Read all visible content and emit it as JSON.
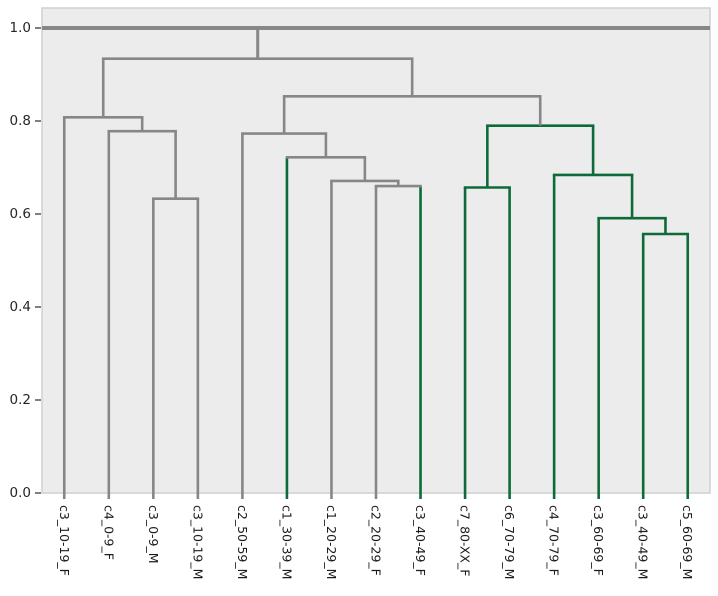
{
  "figure": {
    "background": "#ffffff",
    "axes_background": "#ececec",
    "spine_color": "#d2d2d2",
    "tick_color": "#3b3b3b",
    "tick_label_color": "#262626"
  },
  "chart_data": {
    "type": "dendrogram",
    "title": "",
    "xlabel": "",
    "ylabel": "",
    "orientation": "top",
    "grid": false,
    "legend": null,
    "y_axis": {
      "ticks": [
        "0.0",
        "0.2",
        "0.4",
        "0.6",
        "0.8",
        "1.0"
      ],
      "tick_values": [
        0.0,
        0.2,
        0.4,
        0.6,
        0.8,
        1.0
      ],
      "range": [
        0.0,
        1.04
      ]
    },
    "colors": {
      "gray": "#878787",
      "green": "#0e6b39"
    },
    "line_width": 2.6,
    "root_line_width": 4,
    "leaves": [
      {
        "label": "c3_10-19_F",
        "color": "gray"
      },
      {
        "label": "c4_0-9_F",
        "color": "gray"
      },
      {
        "label": "c3_0-9_M",
        "color": "gray"
      },
      {
        "label": "c3_10-19_M",
        "color": "gray"
      },
      {
        "label": "c2_50-59_M",
        "color": "gray"
      },
      {
        "label": "c1_30-39_M",
        "color": "green"
      },
      {
        "label": "c1_20-29_M",
        "color": "gray"
      },
      {
        "label": "c2_20-29_F",
        "color": "gray"
      },
      {
        "label": "c3_40-49_F",
        "color": "green"
      },
      {
        "label": "c7_80-XX_F",
        "color": "green"
      },
      {
        "label": "c6_70-79_M",
        "color": "green"
      },
      {
        "label": "c4_70-79_F",
        "color": "green"
      },
      {
        "label": "c3_60-69_F",
        "color": "green"
      },
      {
        "label": "c3_40-49_M",
        "color": "green"
      },
      {
        "label": "c5_60-69_M",
        "color": "green"
      }
    ],
    "merges": [
      {
        "id": "m1",
        "children": [
          "leaf:2",
          "leaf:3"
        ],
        "height": 0.633,
        "color": "gray"
      },
      {
        "id": "m2",
        "children": [
          "leaf:1",
          "m1"
        ],
        "height": 0.778,
        "color": "gray"
      },
      {
        "id": "m3",
        "children": [
          "leaf:0",
          "m2"
        ],
        "height": 0.808,
        "color": "gray"
      },
      {
        "id": "m4",
        "children": [
          "leaf:7",
          "leaf:8"
        ],
        "height": 0.66,
        "color": "gray"
      },
      {
        "id": "m5",
        "children": [
          "leaf:6",
          "m4"
        ],
        "height": 0.671,
        "color": "gray"
      },
      {
        "id": "m6",
        "children": [
          "leaf:5",
          "m5"
        ],
        "height": 0.722,
        "color": "gray"
      },
      {
        "id": "m7",
        "children": [
          "leaf:4",
          "m6"
        ],
        "height": 0.773,
        "color": "gray"
      },
      {
        "id": "m8",
        "children": [
          "leaf:9",
          "leaf:10"
        ],
        "height": 0.657,
        "color": "green"
      },
      {
        "id": "m9",
        "children": [
          "leaf:13",
          "leaf:14"
        ],
        "height": 0.557,
        "color": "green"
      },
      {
        "id": "m10",
        "children": [
          "leaf:12",
          "m9"
        ],
        "height": 0.591,
        "color": "green"
      },
      {
        "id": "m11",
        "children": [
          "leaf:11",
          "m10"
        ],
        "height": 0.684,
        "color": "green"
      },
      {
        "id": "m12",
        "children": [
          "m8",
          "m11"
        ],
        "height": 0.79,
        "color": "green"
      },
      {
        "id": "m13",
        "children": [
          "m7",
          "m12"
        ],
        "height": 0.853,
        "color": "gray"
      },
      {
        "id": "m14",
        "children": [
          "m3",
          "m13"
        ],
        "height": 0.934,
        "color": "gray"
      }
    ],
    "root": {
      "height": 1.0,
      "color": "gray",
      "full_width": true,
      "connects_to": "m14"
    }
  }
}
